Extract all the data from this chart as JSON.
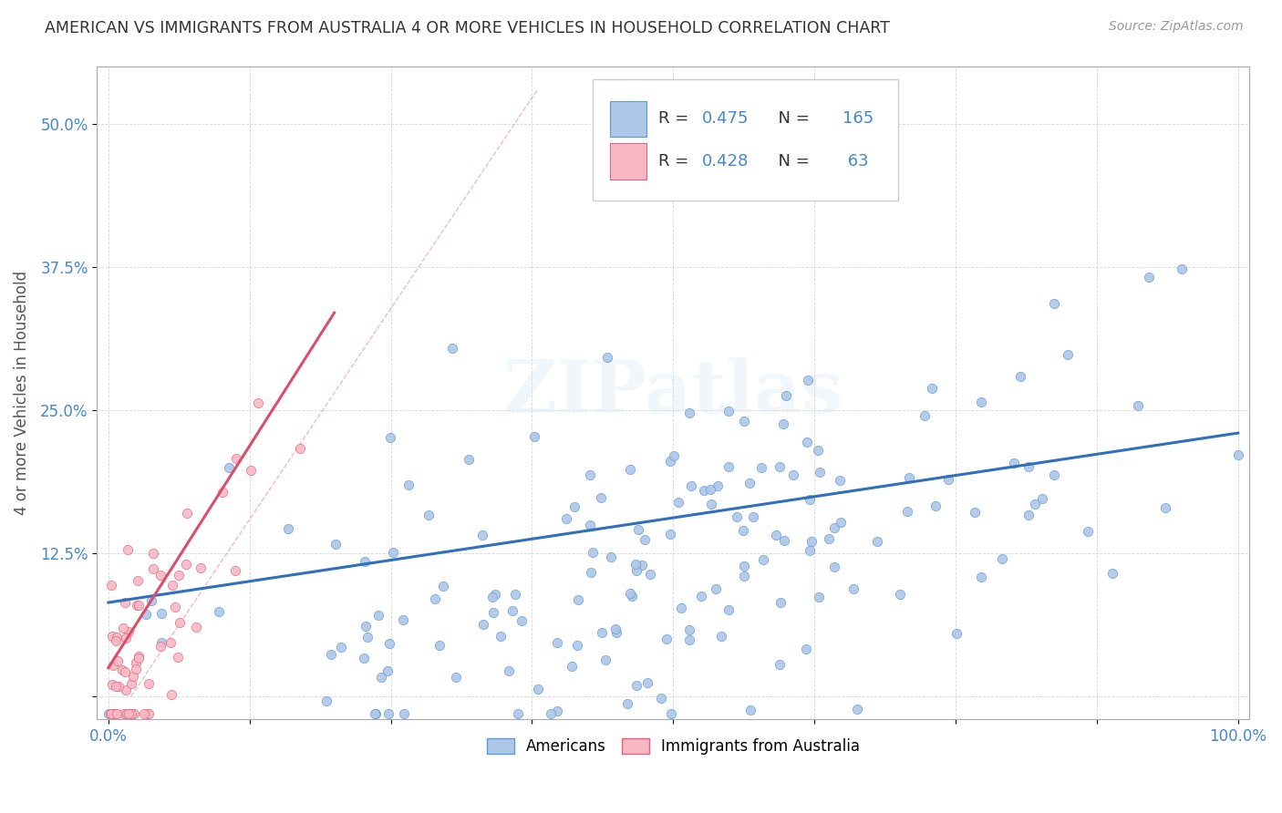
{
  "title": "AMERICAN VS IMMIGRANTS FROM AUSTRALIA 4 OR MORE VEHICLES IN HOUSEHOLD CORRELATION CHART",
  "source": "Source: ZipAtlas.com",
  "ylabel": "4 or more Vehicles in Household",
  "xlim": [
    0.0,
    1.0
  ],
  "ylim": [
    -0.02,
    0.55
  ],
  "xticks": [
    0.0,
    0.125,
    0.25,
    0.375,
    0.5,
    0.625,
    0.75,
    0.875,
    1.0
  ],
  "xticklabels": [
    "0.0%",
    "",
    "",
    "",
    "",
    "",
    "",
    "",
    "100.0%"
  ],
  "yticks": [
    0.0,
    0.125,
    0.25,
    0.375,
    0.5
  ],
  "yticklabels": [
    "",
    "12.5%",
    "25.0%",
    "37.5%",
    "50.0%"
  ],
  "american_color": "#aec6e8",
  "american_edge_color": "#5b9bd5",
  "immigrant_color": "#f7b8c4",
  "immigrant_edge_color": "#e8607a",
  "american_line_color": "#2e6fbe",
  "immigrant_line_color": "#d94f6a",
  "r_american": 0.475,
  "n_american": 165,
  "r_immigrant": 0.428,
  "n_immigrant": 63,
  "watermark": "ZIPatlas",
  "background_color": "#ffffff",
  "grid_color": "#bbbbbb",
  "title_color": "#333333",
  "axis_label_color": "#555555",
  "tick_label_color": "#4488cc",
  "seed_american": 12,
  "seed_immigrant": 77
}
